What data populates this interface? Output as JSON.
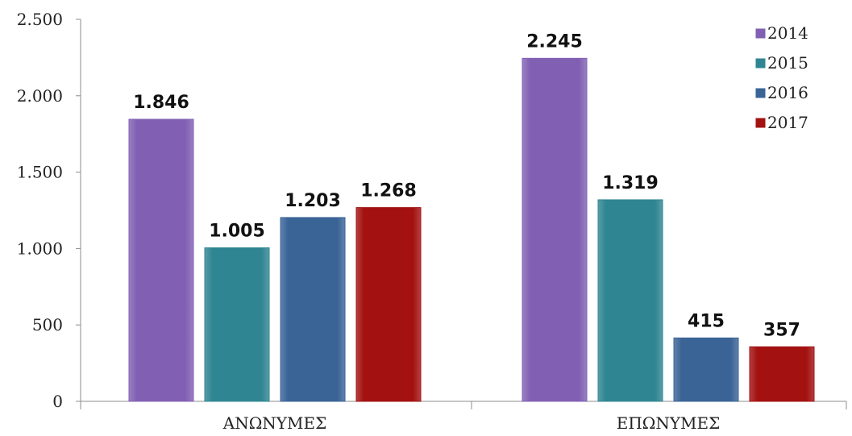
{
  "chart_data": {
    "type": "bar",
    "categories": [
      "ΑΝΩΝΥΜΕΣ",
      "ΕΠΩΝΥΜΕΣ"
    ],
    "series": [
      {
        "name": "2014",
        "values": [
          1846,
          2245
        ],
        "labels": [
          "1.846",
          "2.245"
        ],
        "color": "#8160b3"
      },
      {
        "name": "2015",
        "values": [
          1005,
          1319
        ],
        "labels": [
          "1.005",
          "1.319"
        ],
        "color": "#2f8592"
      },
      {
        "name": "2016",
        "values": [
          1203,
          415
        ],
        "labels": [
          "1.203",
          "415"
        ],
        "color": "#3a6396"
      },
      {
        "name": "2017",
        "values": [
          1268,
          357
        ],
        "labels": [
          "1.268",
          "357"
        ],
        "color": "#a31111"
      }
    ],
    "yticks": [
      0,
      500,
      1000,
      1500,
      2000,
      2500
    ],
    "ytick_labels": [
      "0",
      "500",
      "1.000",
      "1.500",
      "2.000",
      "2.500"
    ],
    "ylim": [
      0,
      2500
    ],
    "grid": false,
    "legend": "top-right"
  }
}
